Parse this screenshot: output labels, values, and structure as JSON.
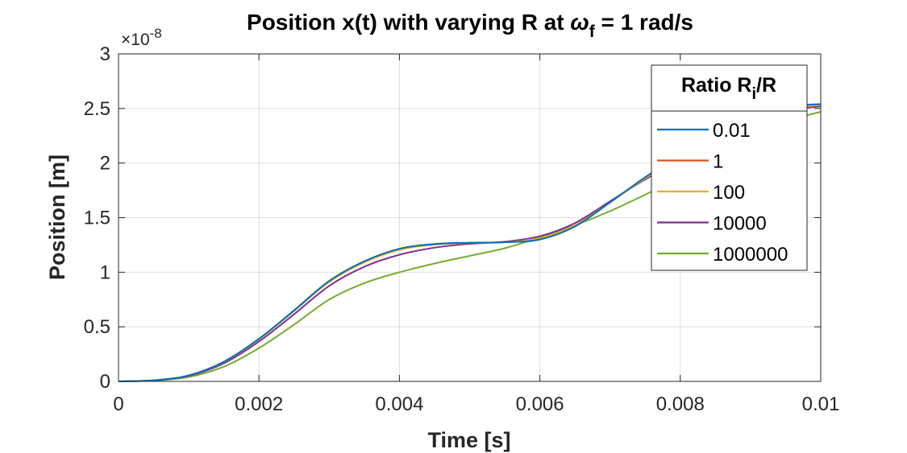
{
  "chart_data": {
    "type": "line",
    "title": "Position x(t) with varying R at ",
    "title_symbol": "ω",
    "title_symbol_sub": "f",
    "title_suffix": " = 1 rad/s",
    "xlabel": "Time [s]",
    "ylabel": "Position [m]",
    "y_exponent_label": "×10",
    "y_exponent_power": "-8",
    "xlim": [
      0,
      0.01
    ],
    "ylim": [
      0,
      3e-08
    ],
    "x_ticks": [
      "0",
      "0.002",
      "0.004",
      "0.006",
      "0.008",
      "0.01"
    ],
    "y_ticks": [
      "0",
      "0.5",
      "1",
      "1.5",
      "2",
      "2.5",
      "3"
    ],
    "grid": true,
    "legend": {
      "title_main": "Ratio R",
      "title_sub": "i",
      "title_suffix": "/R",
      "placement": "top-right"
    },
    "x": [
      0,
      0.0005,
      0.001,
      0.0015,
      0.002,
      0.0025,
      0.003,
      0.0035,
      0.004,
      0.0045,
      0.005,
      0.0055,
      0.006,
      0.0065,
      0.007,
      0.0075,
      0.008,
      0.0085,
      0.009,
      0.0095,
      0.01
    ],
    "series": [
      {
        "name": "0.01",
        "color": "#0072BD",
        "values": [
          0,
          1e-10,
          5.5e-10,
          1.8e-09,
          3.9e-09,
          6.5e-09,
          9.2e-09,
          1.1e-08,
          1.215e-08,
          1.258e-08,
          1.27e-08,
          1.275e-08,
          1.3e-08,
          1.42e-08,
          1.64e-08,
          1.87e-08,
          2.08e-08,
          2.3e-08,
          2.46e-08,
          2.52e-08,
          2.54e-08
        ]
      },
      {
        "name": "1",
        "color": "#D95319",
        "values": [
          0,
          1e-10,
          5.5e-10,
          1.8e-09,
          3.9e-09,
          6.5e-09,
          9.2e-09,
          1.1e-08,
          1.215e-08,
          1.258e-08,
          1.27e-08,
          1.275e-08,
          1.3e-08,
          1.42e-08,
          1.64e-08,
          1.87e-08,
          2.08e-08,
          2.3e-08,
          2.46e-08,
          2.52e-08,
          2.54e-08
        ]
      },
      {
        "name": "100",
        "color": "#EDB120",
        "values": [
          0,
          1e-10,
          5.4e-10,
          1.78e-09,
          3.85e-09,
          6.45e-09,
          9.1e-09,
          1.09e-08,
          1.205e-08,
          1.252e-08,
          1.268e-08,
          1.275e-08,
          1.31e-08,
          1.43e-08,
          1.64e-08,
          1.86e-08,
          2.06e-08,
          2.28e-08,
          2.44e-08,
          2.51e-08,
          2.53e-08
        ]
      },
      {
        "name": "10000",
        "color": "#7E2F8E",
        "values": [
          0,
          9e-11,
          5e-10,
          1.65e-09,
          3.65e-09,
          6.15e-09,
          8.75e-09,
          1.05e-08,
          1.16e-08,
          1.225e-08,
          1.26e-08,
          1.28e-08,
          1.33e-08,
          1.45e-08,
          1.65e-08,
          1.85e-08,
          2.03e-08,
          2.24e-08,
          2.4e-08,
          2.48e-08,
          2.52e-08
        ]
      },
      {
        "name": "1000000",
        "color": "#77AC30",
        "values": [
          0,
          7e-11,
          4e-10,
          1.35e-09,
          3.05e-09,
          5.2e-09,
          7.5e-09,
          9e-09,
          1e-08,
          1.08e-08,
          1.15e-08,
          1.22e-08,
          1.32e-08,
          1.43e-08,
          1.56e-08,
          1.71e-08,
          1.87e-08,
          2.05e-08,
          2.24e-08,
          2.38e-08,
          2.47e-08
        ]
      }
    ]
  }
}
